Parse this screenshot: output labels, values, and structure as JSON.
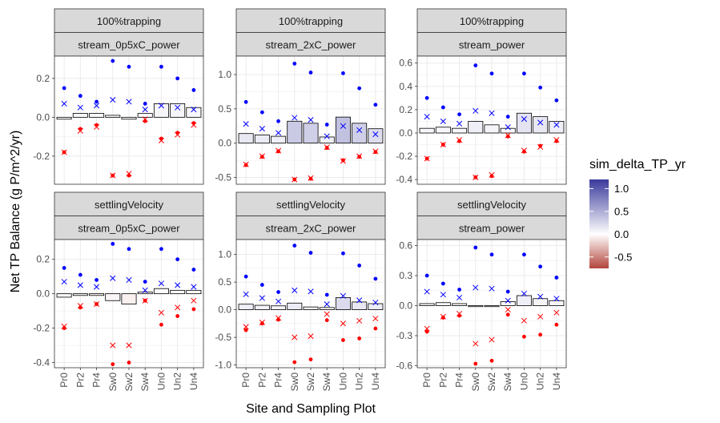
{
  "chart_data": {
    "type": "scatter",
    "xlabel": "Site and Sampling Plot",
    "ylabel": "Net TP Balance (g P/m^2/yr)",
    "categories": [
      "Pr0",
      "Pr2",
      "Pr4",
      "Sw0",
      "Sw2",
      "Sw4",
      "Un0",
      "Un2",
      "Un4"
    ],
    "legend": {
      "title": "sim_delta_TP_yr",
      "ticks": [
        "1.0",
        "0.5",
        "0.0",
        "-0.5"
      ],
      "tick_values": [
        1.0,
        0.5,
        0.0,
        -0.5
      ],
      "range": [
        -0.75,
        1.2
      ],
      "low_color": "#b2453b",
      "mid_color": "#ffffff",
      "high_color": "#3a3a9c"
    },
    "colors": {
      "blue": "#0000ff",
      "red": "#ff0000",
      "strip_bg": "#d9d9d9",
      "grid": "#ebebeb"
    },
    "panels": [
      {
        "strip_top": "100%trapping",
        "strip_bottom": "stream_0p5xC_power",
        "ylim": [
          -0.345,
          0.315
        ],
        "yticks": [
          -0.2,
          0.0,
          0.2
        ],
        "ytick_labels": [
          "-0.2",
          "0.0",
          "0.2"
        ],
        "bars": [
          -0.01,
          0.02,
          0.02,
          0.01,
          -0.01,
          0.02,
          0.07,
          0.07,
          0.05
        ],
        "blue_dots": [
          0.15,
          0.11,
          0.08,
          0.29,
          0.26,
          0.07,
          0.26,
          0.2,
          0.14
        ],
        "blue_x": [
          0.07,
          0.05,
          0.06,
          0.09,
          0.08,
          0.04,
          0.06,
          0.05,
          0.04
        ],
        "red_dots": [
          -0.18,
          -0.06,
          -0.04,
          -0.3,
          -0.3,
          -0.02,
          -0.11,
          -0.08,
          -0.03
        ],
        "red_x": [
          -0.18,
          -0.07,
          -0.05,
          -0.3,
          -0.29,
          -0.01,
          -0.12,
          -0.09,
          -0.04
        ]
      },
      {
        "strip_top": "100%trapping",
        "strip_bottom": "stream_2xC_power",
        "ylim": [
          -0.6,
          1.27
        ],
        "yticks": [
          -0.5,
          0.0,
          0.5,
          1.0
        ],
        "ytick_labels": [
          "-0.5",
          "0.0",
          "0.5",
          "1.0"
        ],
        "bars": [
          0.14,
          0.12,
          0.1,
          0.32,
          0.29,
          0.09,
          0.38,
          0.29,
          0.21
        ],
        "blue_dots": [
          0.6,
          0.45,
          0.32,
          1.16,
          1.03,
          0.27,
          1.02,
          0.8,
          0.56
        ],
        "blue_x": [
          0.28,
          0.21,
          0.15,
          0.37,
          0.34,
          0.1,
          0.25,
          0.19,
          0.13
        ],
        "red_dots": [
          -0.32,
          -0.2,
          -0.12,
          -0.53,
          -0.52,
          -0.07,
          -0.25,
          -0.2,
          -0.13
        ],
        "red_x": [
          -0.31,
          -0.19,
          -0.11,
          -0.53,
          -0.51,
          -0.06,
          -0.26,
          -0.19,
          -0.12
        ]
      },
      {
        "strip_top": "100%trapping",
        "strip_bottom": "stream_power",
        "ylim": [
          -0.44,
          0.66
        ],
        "yticks": [
          -0.4,
          -0.2,
          0.0,
          0.2,
          0.4,
          0.6
        ],
        "ytick_labels": [
          "-0.4",
          "-0.2",
          "0.0",
          "0.2",
          "0.4",
          "0.6"
        ],
        "bars": [
          0.04,
          0.05,
          0.04,
          0.1,
          0.07,
          0.04,
          0.17,
          0.14,
          0.1
        ],
        "blue_dots": [
          0.3,
          0.22,
          0.16,
          0.58,
          0.51,
          0.14,
          0.51,
          0.39,
          0.28
        ],
        "blue_x": [
          0.14,
          0.1,
          0.08,
          0.19,
          0.17,
          0.05,
          0.12,
          0.09,
          0.07
        ],
        "red_dots": [
          -0.22,
          -0.1,
          -0.07,
          -0.38,
          -0.37,
          -0.03,
          -0.16,
          -0.11,
          -0.07
        ],
        "red_x": [
          -0.22,
          -0.1,
          -0.06,
          -0.38,
          -0.36,
          -0.02,
          -0.15,
          -0.12,
          -0.06
        ]
      },
      {
        "strip_top": "settlingVelocity",
        "strip_bottom": "stream_0p5xC_power",
        "ylim": [
          -0.43,
          0.315
        ],
        "yticks": [
          -0.4,
          -0.2,
          0.0,
          0.2
        ],
        "ytick_labels": [
          "-0.4",
          "-0.2",
          "0.0",
          "0.2"
        ],
        "bars": [
          -0.02,
          -0.01,
          -0.01,
          -0.04,
          -0.06,
          0.01,
          0.03,
          0.02,
          0.02
        ],
        "blue_dots": [
          0.15,
          0.11,
          0.08,
          0.29,
          0.26,
          0.07,
          0.26,
          0.2,
          0.14
        ],
        "blue_x": [
          0.07,
          0.05,
          0.04,
          0.09,
          0.08,
          0.02,
          0.06,
          0.05,
          0.04
        ],
        "red_dots": [
          -0.2,
          -0.08,
          -0.06,
          -0.41,
          -0.4,
          -0.04,
          -0.18,
          -0.13,
          -0.09
        ],
        "red_x": [
          -0.19,
          -0.07,
          -0.06,
          -0.3,
          -0.3,
          -0.04,
          -0.11,
          -0.08,
          -0.04
        ]
      },
      {
        "strip_top": "settlingVelocity",
        "strip_bottom": "stream_2xC_power",
        "ylim": [
          -1.05,
          1.27
        ],
        "yticks": [
          -1.0,
          -0.5,
          0.0,
          0.5,
          1.0
        ],
        "ytick_labels": [
          "-1.0",
          "-0.5",
          "0.0",
          "0.5",
          "1.0"
        ],
        "bars": [
          0.1,
          0.08,
          0.07,
          0.12,
          0.05,
          0.04,
          0.22,
          0.14,
          0.11
        ],
        "blue_dots": [
          0.6,
          0.45,
          0.32,
          1.16,
          1.03,
          0.27,
          1.02,
          0.8,
          0.56
        ],
        "blue_x": [
          0.28,
          0.21,
          0.15,
          0.35,
          0.33,
          0.1,
          0.25,
          0.17,
          0.13
        ],
        "red_dots": [
          -0.37,
          -0.25,
          -0.18,
          -0.95,
          -0.9,
          -0.19,
          -0.55,
          -0.52,
          -0.34
        ],
        "red_x": [
          -0.31,
          -0.23,
          -0.15,
          -0.5,
          -0.48,
          -0.08,
          -0.25,
          -0.2,
          -0.16
        ]
      },
      {
        "strip_top": "settlingVelocity",
        "strip_bottom": "stream_power",
        "ylim": [
          -0.62,
          0.66
        ],
        "yticks": [
          -0.6,
          -0.3,
          0.0,
          0.3,
          0.6
        ],
        "ytick_labels": [
          "-0.6",
          "-0.3",
          "0.0",
          "0.3",
          "0.6"
        ],
        "bars": [
          0.02,
          0.03,
          0.02,
          -0.01,
          -0.01,
          0.04,
          0.1,
          0.07,
          0.05
        ],
        "blue_dots": [
          0.3,
          0.22,
          0.16,
          0.58,
          0.51,
          0.14,
          0.51,
          0.39,
          0.28
        ],
        "blue_x": [
          0.14,
          0.11,
          0.08,
          0.18,
          0.17,
          0.05,
          0.12,
          0.09,
          0.07
        ],
        "red_dots": [
          -0.26,
          -0.12,
          -0.1,
          -0.58,
          -0.55,
          -0.09,
          -0.31,
          -0.29,
          -0.19
        ],
        "red_x": [
          -0.23,
          -0.11,
          -0.08,
          -0.38,
          -0.34,
          -0.04,
          -0.15,
          -0.11,
          -0.07
        ]
      }
    ]
  }
}
